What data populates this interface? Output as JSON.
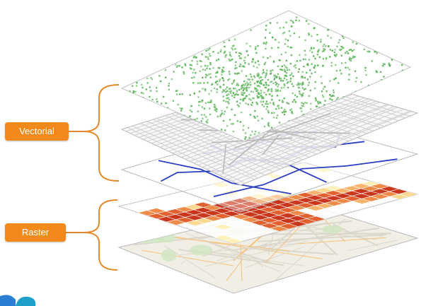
{
  "labels": {
    "vectorial": "Vectorial",
    "raster": "Raster"
  },
  "colors": {
    "label_bg": "#f28a1b",
    "bracket": "#e58a2b",
    "points": "#5fb55c",
    "network": "#2a3fc4",
    "streets": "#cfcfcf",
    "layer_border": "#b9b9b9",
    "heat_low": "#fde8a8",
    "heat_high": "#c9361c",
    "basemap": "#f1eee6"
  },
  "layers": [
    {
      "name": "points",
      "group": "vectorial",
      "style": "scattered green dots"
    },
    {
      "name": "streets",
      "group": "vectorial",
      "style": "grey street map"
    },
    {
      "name": "network",
      "group": "vectorial",
      "style": "blue line network"
    },
    {
      "name": "heatmap-grid",
      "group": "raster",
      "style": "orange heat grid"
    },
    {
      "name": "basemap",
      "group": "raster",
      "style": "light map tiles"
    }
  ]
}
